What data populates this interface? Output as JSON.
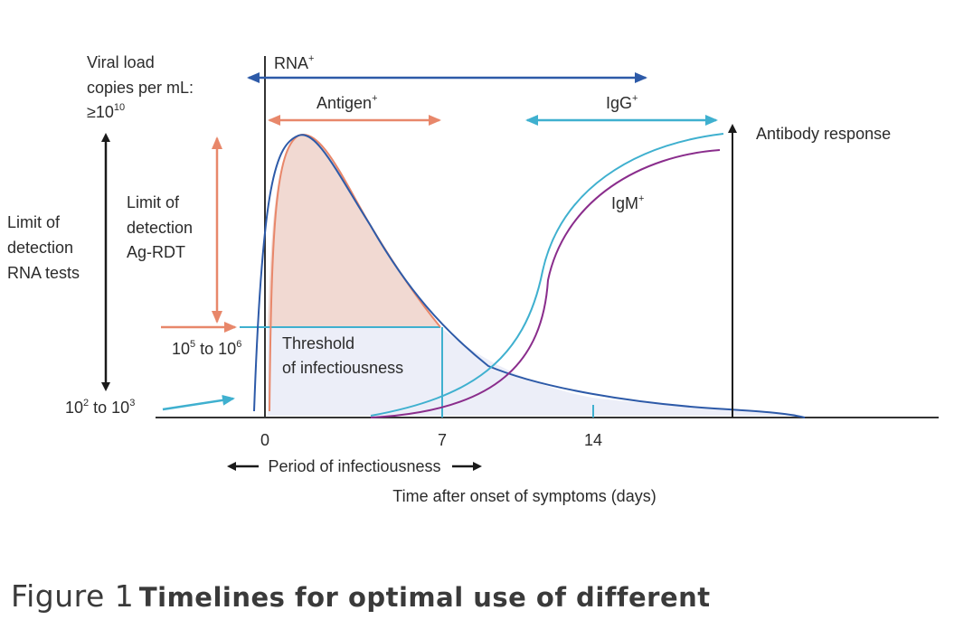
{
  "colors": {
    "orange": "#e8876a",
    "orange_fill": "#f1d9d2",
    "blue": "#2d5aa8",
    "teal": "#3fb0cf",
    "purple": "#8a2d8c",
    "lavender_fill": "#eceef8",
    "axis": "#333333",
    "text": "#2b2b2b"
  },
  "labels": {
    "viral_load_1": "Viral load",
    "viral_load_2": "copies per mL:",
    "viral_load_3": "≥10",
    "viral_load_3_sup": "10",
    "rna_tests_1": "Limit of",
    "rna_tests_2": "detection",
    "rna_tests_3": "RNA tests",
    "agrdt_1": "Limit of",
    "agrdt_2": "detection",
    "agrdt_3": "Ag-RDT",
    "threshold_range_a": "10",
    "threshold_range_a_sup": "5",
    "threshold_range_mid": " to 10",
    "threshold_range_b_sup": "6",
    "low_range_a": "10",
    "low_range_a_sup": "2",
    "low_range_mid": " to 10",
    "low_range_b_sup": "3",
    "threshold_1": "Threshold",
    "threshold_2": "of infectiousness",
    "rna": "RNA",
    "rna_sup": "+",
    "antigen": "Antigen",
    "antigen_sup": "+",
    "igg": "IgG",
    "igg_sup": "+",
    "igm": "IgM",
    "igm_sup": "+",
    "antibody_response": "Antibody response",
    "tick_0": "0",
    "tick_7": "7",
    "tick_14": "14",
    "period": "Period of infectiousness",
    "time_axis": "Time after onset of symptoms (days)"
  },
  "caption": {
    "figure": "Figure 1",
    "text": "Timelines for optimal use of different"
  }
}
